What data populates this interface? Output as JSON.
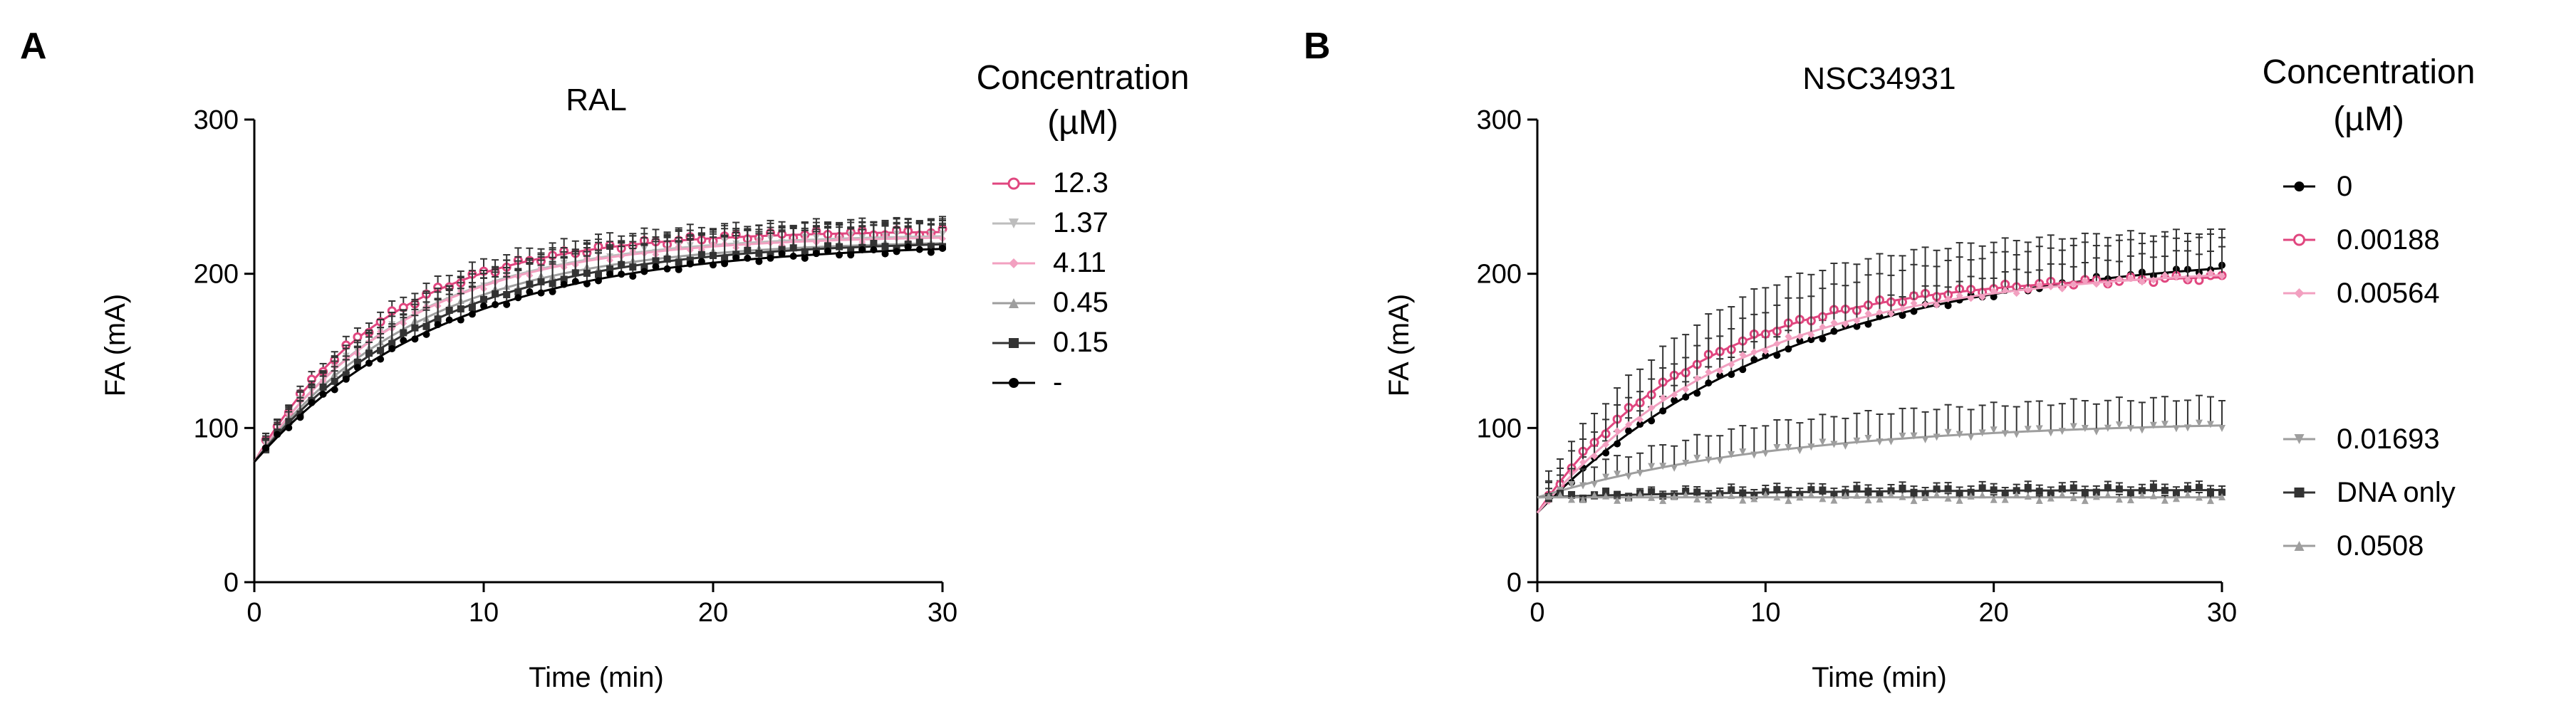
{
  "panels": [
    {
      "letter": "A",
      "legend": {
        "title_line1": "Concentration",
        "title_line2": "(µM)",
        "entries": [
          "12.3",
          "1.37",
          "4.11",
          "0.45",
          "0.15",
          "-"
        ]
      }
    },
    {
      "letter": "B",
      "legend": {
        "title_line1": "Concentration",
        "title_line2": "(µM)",
        "entries": [
          "0",
          "0.00188",
          "0.00564",
          "0.01693",
          "DNA only",
          "0.0508"
        ]
      }
    }
  ],
  "chart_data": [
    {
      "type": "line",
      "title": "RAL",
      "xlabel": "Time (min)",
      "ylabel": "FA (mA)",
      "xlim": [
        0,
        30
      ],
      "ylim": [
        0,
        300
      ],
      "xticks": [
        0,
        10,
        20,
        30
      ],
      "yticks": [
        0,
        100,
        200,
        300
      ],
      "legend_position": "right",
      "series": [
        {
          "name": "12.3",
          "color": "#e0467f",
          "marker": "open-circle",
          "model": {
            "y0": 78,
            "plateau": 228,
            "k": 0.17
          },
          "errorbar": 8
        },
        {
          "name": "1.37",
          "color": "#bdbdbd",
          "marker": "triangle-down",
          "model": {
            "y0": 78,
            "plateau": 226,
            "k": 0.15
          },
          "errorbar": 10
        },
        {
          "name": "4.11",
          "color": "#f2a0c0",
          "marker": "diamond",
          "model": {
            "y0": 78,
            "plateau": 225,
            "k": 0.15
          },
          "errorbar": 10
        },
        {
          "name": "0.45",
          "color": "#9e9e9e",
          "marker": "triangle-up",
          "model": {
            "y0": 78,
            "plateau": 222,
            "k": 0.14
          },
          "errorbar": 12
        },
        {
          "name": "0.15",
          "color": "#333333",
          "marker": "square",
          "model": {
            "y0": 78,
            "plateau": 222,
            "k": 0.13
          },
          "errorbar": 14
        },
        {
          "name": "-",
          "color": "#000000",
          "marker": "circle",
          "model": {
            "y0": 78,
            "plateau": 220,
            "k": 0.12
          },
          "errorbar": 18
        }
      ]
    },
    {
      "type": "line",
      "title": "NSC34931",
      "xlabel": "Time (min)",
      "ylabel": "FA (mA)",
      "xlim": [
        0,
        30
      ],
      "ylim": [
        0,
        300
      ],
      "xticks": [
        0,
        10,
        20,
        30
      ],
      "yticks": [
        0,
        100,
        200,
        300
      ],
      "legend_position": "right",
      "series": [
        {
          "name": "0",
          "color": "#000000",
          "marker": "circle",
          "model": {
            "y0": 45,
            "plateau": 215,
            "k": 0.09
          },
          "errorbar": 12
        },
        {
          "name": "0.00188",
          "color": "#e0467f",
          "marker": "open-circle",
          "model": {
            "y0": 45,
            "plateau": 200,
            "k": 0.14
          },
          "errorbar": 30
        },
        {
          "name": "0.00564",
          "color": "#f2a0c0",
          "marker": "diamond",
          "model": {
            "y0": 45,
            "plateau": 205,
            "k": 0.11
          },
          "errorbar": 25
        },
        {
          "name": "0.01693",
          "color": "#9e9e9e",
          "marker": "triangle-down",
          "model": {
            "y0": 55,
            "plateau": 105,
            "k": 0.09
          },
          "errorbar": 18
        },
        {
          "name": "DNA only",
          "color": "#333333",
          "marker": "square",
          "model": {
            "y0": 55,
            "plateau": 60,
            "k": 0.1
          },
          "errorbar": 4
        },
        {
          "name": "0.0508",
          "color": "#9e9e9e",
          "marker": "triangle-up",
          "model": {
            "y0": 55,
            "plateau": 55,
            "k": 0.1
          },
          "errorbar": 3
        }
      ]
    }
  ]
}
